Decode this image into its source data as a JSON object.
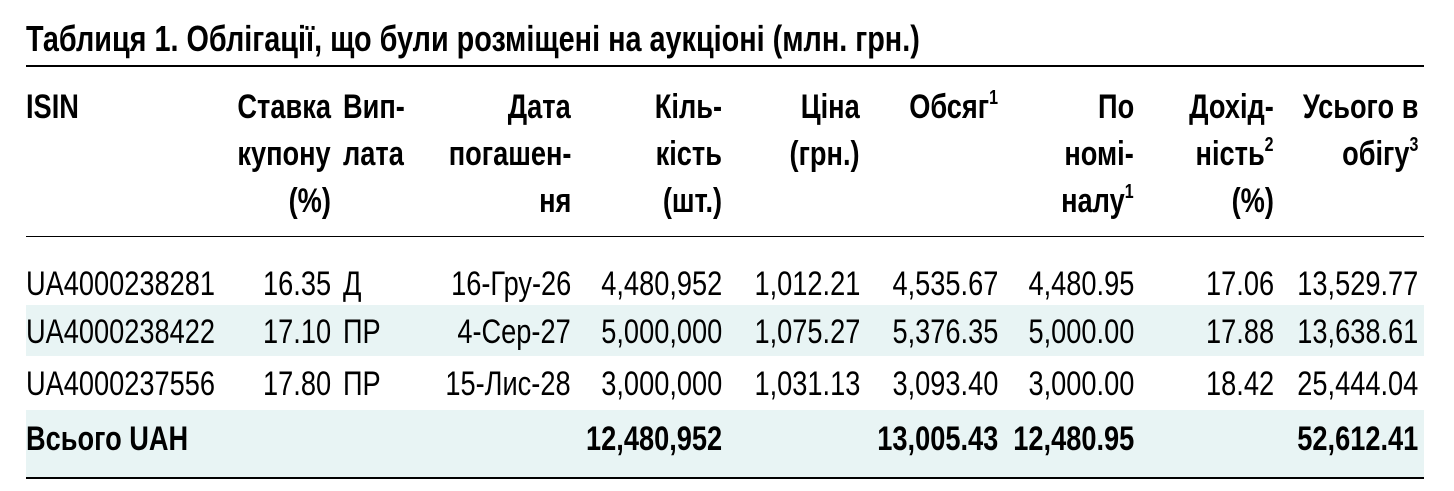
{
  "title": "Таблиця 1. Облігації, що були розміщені на аукціоні (млн. грн.)",
  "colors": {
    "row_shade": "#e8f4f4",
    "text": "#000000"
  },
  "headers": [
    {
      "lines": [
        "ISIN"
      ]
    },
    {
      "lines": [
        "Ставка",
        "купону",
        "(%)"
      ]
    },
    {
      "lines": [
        "Вип-",
        "лата"
      ]
    },
    {
      "lines": [
        "Дата",
        "погашен-",
        "ня"
      ]
    },
    {
      "lines": [
        "Кіль-",
        "кість",
        "(шт.)"
      ]
    },
    {
      "lines": [
        "Ціна",
        "(грн.)"
      ]
    },
    {
      "lines": [
        "Обсяг"
      ],
      "sup": [
        "1"
      ]
    },
    {
      "lines": [
        "По",
        "номі-",
        "налу"
      ],
      "sup": [
        "",
        "",
        "1"
      ]
    },
    {
      "lines": [
        "Дохід-",
        "ність",
        "(%)"
      ],
      "sup": [
        "",
        "2",
        ""
      ]
    },
    {
      "lines": [
        "Усього в",
        "обігу"
      ],
      "sup": [
        "",
        "3"
      ]
    }
  ],
  "rows": [
    [
      "UA4000238281",
      "16.35",
      "Д",
      "16-Гру-26",
      "4,480,952",
      "1,012.21",
      "4,535.67",
      "4,480.95",
      "17.06",
      "13,529.77"
    ],
    [
      "UA4000238422",
      "17.10",
      "ПР",
      "4-Сер-27",
      "5,000,000",
      "1,075.27",
      "5,376.35",
      "5,000.00",
      "17.88",
      "13,638.61"
    ],
    [
      "UA4000237556",
      "17.80",
      "ПР",
      "15-Лис-28",
      "3,000,000",
      "1,031.13",
      "3,093.40",
      "3,000.00",
      "18.42",
      "25,444.04"
    ]
  ],
  "total": [
    "Всього UAH",
    "",
    "",
    "",
    "12,480,952",
    "",
    "13,005.43",
    "12,480.95",
    "",
    "52,612.41"
  ]
}
